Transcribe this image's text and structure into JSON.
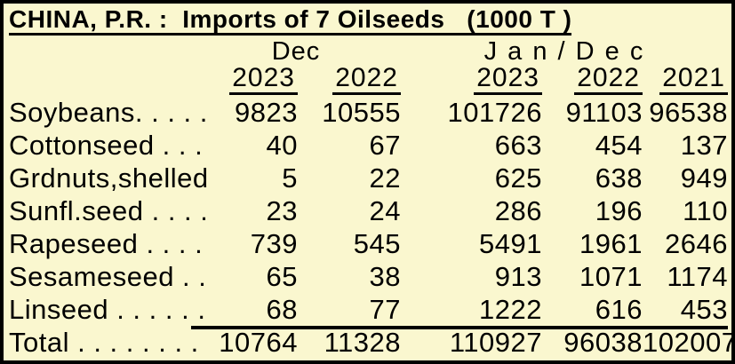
{
  "title": "CHINA, P.R. :  Imports of 7 Oilseeds   (1000 T )",
  "colors": {
    "panel_background": "#FAF7CF",
    "frame_and_text": "#000000"
  },
  "header": {
    "dec_group": "Dec",
    "jandec_group": "J a n / D e c",
    "years": [
      "2023",
      "2022",
      "2023",
      "2022",
      "2021"
    ]
  },
  "rows": [
    {
      "label": "Soybeans. . . . .",
      "values": [
        "9823",
        "10555",
        "101726",
        "91103",
        "96538"
      ]
    },
    {
      "label": "Cottonseed . . .",
      "values": [
        "40",
        "67",
        "663",
        "454",
        "137"
      ]
    },
    {
      "label": "Grdnuts,shelled",
      "values": [
        "5",
        "22",
        "625",
        "638",
        "949"
      ]
    },
    {
      "label": "Sunfl.seed . . . .",
      "values": [
        "23",
        "24",
        "286",
        "196",
        "110"
      ]
    },
    {
      "label": "Rapeseed . . . .",
      "values": [
        "739",
        "545",
        "5491",
        "1961",
        "2646"
      ]
    },
    {
      "label": "Sesameseed . .",
      "values": [
        "65",
        "38",
        "913",
        "1071",
        "1174"
      ]
    },
    {
      "label": "Linseed . . . . . .",
      "values": [
        "68",
        "77",
        "1222",
        "616",
        "453"
      ]
    }
  ],
  "total_row": {
    "label": "Total . . . . . . . .",
    "values": [
      "10764",
      "11328",
      "110927",
      "96038",
      "102007"
    ]
  },
  "chart_data": {
    "type": "table",
    "title": "CHINA, P.R. : Imports of 7 Oilseeds (1000 T)",
    "unit": "1000 T",
    "column_groups": [
      {
        "name": "Dec",
        "columns": [
          "2023",
          "2022"
        ]
      },
      {
        "name": "Jan/Dec",
        "columns": [
          "2023",
          "2022",
          "2021"
        ]
      }
    ],
    "columns": [
      "Dec 2023",
      "Dec 2022",
      "Jan/Dec 2023",
      "Jan/Dec 2022",
      "Jan/Dec 2021"
    ],
    "rows": [
      {
        "commodity": "Soybeans",
        "values": [
          9823,
          10555,
          101726,
          91103,
          96538
        ]
      },
      {
        "commodity": "Cottonseed",
        "values": [
          40,
          67,
          663,
          454,
          137
        ]
      },
      {
        "commodity": "Grdnuts,shelled",
        "values": [
          5,
          22,
          625,
          638,
          949
        ]
      },
      {
        "commodity": "Sunfl.seed",
        "values": [
          23,
          24,
          286,
          196,
          110
        ]
      },
      {
        "commodity": "Rapeseed",
        "values": [
          739,
          545,
          5491,
          1961,
          2646
        ]
      },
      {
        "commodity": "Sesameseed",
        "values": [
          65,
          38,
          913,
          1071,
          1174
        ]
      },
      {
        "commodity": "Linseed",
        "values": [
          68,
          77,
          1222,
          616,
          453
        ]
      },
      {
        "commodity": "Total",
        "values": [
          10764,
          11328,
          110927,
          96038,
          102007
        ]
      }
    ]
  }
}
